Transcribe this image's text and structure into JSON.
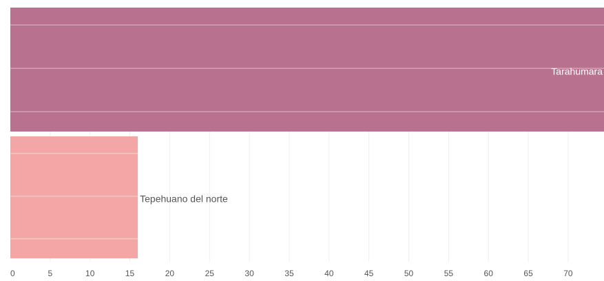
{
  "chart_data": {
    "type": "bar",
    "orientation": "horizontal",
    "title": "",
    "xlabel": "",
    "ylabel": "",
    "categories": [
      "Tarahumara",
      "Tepehuano del norte"
    ],
    "values": [
      74.5,
      16
    ],
    "bar_colors": [
      "#b8728f",
      "#f4a6a6"
    ],
    "label_colors": [
      "#ffffff",
      "#555555"
    ],
    "label_placement": [
      "inside-end",
      "outside-end"
    ],
    "x_ticks": [
      0,
      5,
      10,
      15,
      20,
      25,
      30,
      35,
      40,
      45,
      50,
      55,
      60,
      65,
      70
    ],
    "x_tick_labels": [
      "0",
      "5",
      "10",
      "15",
      "20",
      "25",
      "30",
      "35",
      "40",
      "45",
      "50",
      "55",
      "60",
      "65",
      "70"
    ],
    "xlim": [
      0,
      74.5
    ],
    "grid": true,
    "legend": "none"
  }
}
